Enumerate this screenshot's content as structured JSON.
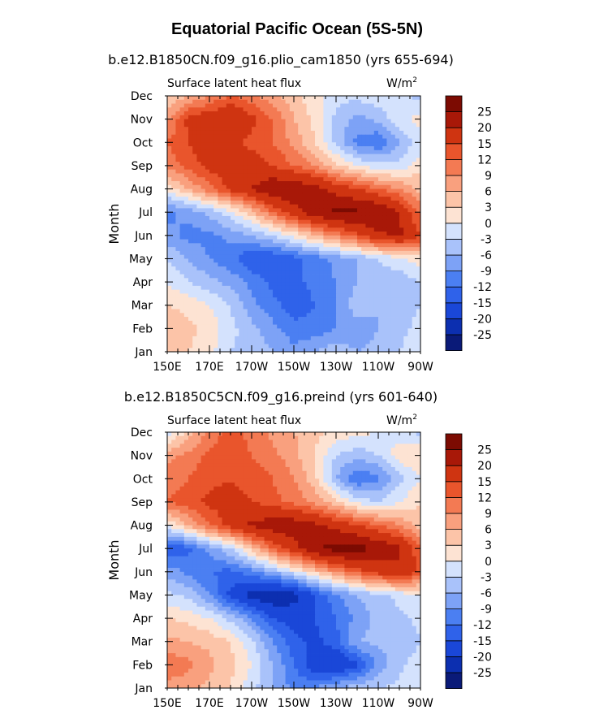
{
  "figure": {
    "title": "Equatorial Pacific Ocean (5S-5N)"
  },
  "colorbar": {
    "levels": [
      "-25",
      "-20",
      "-15",
      "-12",
      "-9",
      "-6",
      "-3",
      "0",
      "3",
      "6",
      "9",
      "12",
      "15",
      "20",
      "25"
    ],
    "colors": [
      "#0a1a78",
      "#0c2fb0",
      "#1a47d8",
      "#2f62ea",
      "#4b7ff2",
      "#7da2f6",
      "#a9c2fa",
      "#d4e2fd",
      "#fde3d3",
      "#fcc4a8",
      "#f9a07e",
      "#f37a53",
      "#e9552c",
      "#cf3411",
      "#a81808",
      "#7c0b02"
    ]
  },
  "chart_data": [
    {
      "type": "heatmap",
      "title": "b.e12.B1850CN.f09_g16.plio_cam1850 (yrs 655-694)",
      "left_string": "Surface latent heat flux",
      "units": "W/m",
      "units_sup": "2",
      "ylabel": "Month",
      "x_ticks": [
        "150E",
        "170E",
        "170W",
        "150W",
        "130W",
        "110W",
        "90W"
      ],
      "x_lon": [
        150,
        170,
        190,
        210,
        230,
        250,
        270
      ],
      "xlim": [
        150,
        270
      ],
      "y_ticks": [
        "Jan",
        "Feb",
        "Mar",
        "Apr",
        "May",
        "Jun",
        "Jul",
        "Aug",
        "Sep",
        "Oct",
        "Nov",
        "Dec"
      ],
      "grid_lon": [
        150,
        160,
        170,
        180,
        190,
        200,
        210,
        220,
        230,
        240,
        250,
        260,
        270
      ],
      "values": [
        [
          4,
          3,
          1,
          -3,
          -4,
          -6,
          -8,
          -6,
          -4,
          -6,
          -5,
          -3,
          -1
        ],
        [
          5,
          4,
          2,
          -2,
          -5,
          -8,
          -11,
          -11,
          -9,
          -8,
          -6,
          -4,
          -2
        ],
        [
          3,
          2,
          0,
          -3,
          -8,
          -11,
          -14,
          -12,
          -9,
          -4,
          -6,
          -4,
          -3
        ],
        [
          0,
          -3,
          -5,
          -7,
          -10,
          -13,
          -13,
          -11,
          -9,
          -6,
          -4,
          -5,
          -3
        ],
        [
          -3,
          -6,
          -9,
          -11,
          -15,
          -15,
          -13,
          -11,
          -8,
          -6,
          -3,
          -1,
          2
        ],
        [
          -8,
          -10,
          -10,
          -8,
          -6,
          -3,
          1,
          6,
          10,
          14,
          19,
          21,
          15
        ],
        [
          -10,
          -8,
          -5,
          -1,
          5,
          12,
          18,
          23,
          26,
          26,
          25,
          20,
          11
        ],
        [
          1,
          6,
          11,
          16,
          20,
          24,
          24,
          22,
          18,
          15,
          12,
          9,
          5
        ],
        [
          10,
          13,
          16,
          18,
          17,
          15,
          12,
          9,
          4,
          0,
          -2,
          -2,
          2
        ],
        [
          12,
          15,
          18,
          16,
          14,
          12,
          8,
          3,
          -4,
          -10,
          -12,
          -6,
          -2
        ],
        [
          8,
          16,
          18,
          20,
          16,
          12,
          6,
          2,
          -4,
          -7,
          -5,
          -1,
          1
        ],
        [
          3,
          6,
          9,
          12,
          10,
          7,
          4,
          1,
          -2,
          -2,
          -1,
          -2,
          -4
        ]
      ]
    },
    {
      "type": "heatmap",
      "title": "b.e12.B1850C5CN.f09_g16.preind (yrs 601-640)",
      "left_string": "Surface latent heat flux",
      "units": "W/m",
      "units_sup": "2",
      "ylabel": "Month",
      "x_ticks": [
        "150E",
        "170E",
        "170W",
        "150W",
        "130W",
        "110W",
        "90W"
      ],
      "x_lon": [
        150,
        170,
        190,
        210,
        230,
        250,
        270
      ],
      "xlim": [
        150,
        270
      ],
      "y_ticks": [
        "Jan",
        "Feb",
        "Mar",
        "Apr",
        "May",
        "Jun",
        "Jul",
        "Aug",
        "Sep",
        "Oct",
        "Nov",
        "Dec"
      ],
      "grid_lon": [
        150,
        160,
        170,
        180,
        190,
        200,
        210,
        220,
        230,
        240,
        250,
        260,
        270
      ],
      "values": [
        [
          8,
          7,
          5,
          3,
          -2,
          -6,
          -10,
          -9,
          -6,
          -4,
          -3,
          -2,
          0
        ],
        [
          11,
          10,
          7,
          4,
          0,
          -6,
          -12,
          -18,
          -20,
          -16,
          -8,
          -4,
          -1
        ],
        [
          7,
          6,
          5,
          3,
          -2,
          -9,
          -14,
          -16,
          -13,
          -6,
          -5,
          -6,
          -3
        ],
        [
          3,
          2,
          0,
          -4,
          -9,
          -15,
          -17,
          -15,
          -12,
          -8,
          -5,
          -4,
          -2
        ],
        [
          -2,
          -4,
          -9,
          -16,
          -22,
          -24,
          -22,
          -15,
          -10,
          -6,
          -4,
          -2,
          0
        ],
        [
          -7,
          -10,
          -12,
          -13,
          -10,
          -6,
          -1,
          4,
          9,
          13,
          17,
          19,
          14
        ],
        [
          -15,
          -13,
          -8,
          -3,
          5,
          12,
          18,
          24,
          27,
          27,
          24,
          21,
          12
        ],
        [
          0,
          6,
          12,
          17,
          21,
          23,
          23,
          21,
          18,
          15,
          12,
          9,
          4
        ],
        [
          12,
          14,
          16,
          16,
          15,
          13,
          11,
          8,
          4,
          -1,
          -3,
          0,
          3
        ],
        [
          10,
          12,
          14,
          15,
          14,
          12,
          9,
          4,
          -6,
          -12,
          -10,
          -4,
          0
        ],
        [
          8,
          10,
          13,
          14,
          12,
          10,
          7,
          3,
          -3,
          -5,
          -3,
          2,
          3
        ],
        [
          -2,
          4,
          10,
          13,
          11,
          8,
          6,
          4,
          2,
          1,
          0,
          -2,
          -4
        ]
      ]
    }
  ]
}
